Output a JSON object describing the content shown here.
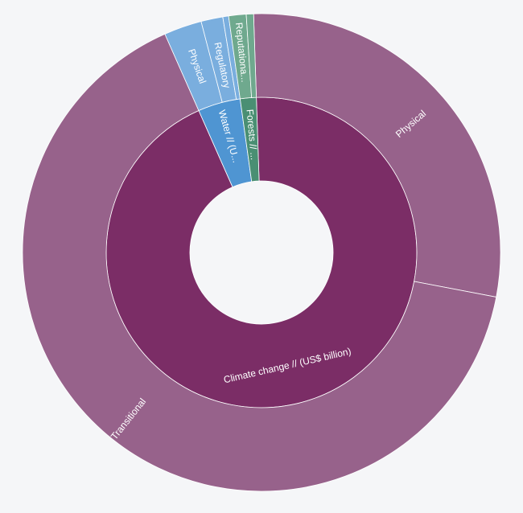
{
  "chart_data": {
    "type": "sunburst",
    "title": "",
    "inner_ring": [
      {
        "label": "Climate change // (US$ billion)",
        "value": 0.955,
        "color": "#7b2d66"
      },
      {
        "label": "Water // (U...",
        "value": 0.045,
        "color": "#4f95d2"
      },
      {
        "label": "Forests // ...",
        "value": 0.017,
        "color": "#4a8f73"
      }
    ],
    "outer_ring": [
      {
        "label": "Physical",
        "parent": "Climate change // (US$ billion)",
        "value": 0.29,
        "color": "#97628b"
      },
      {
        "label": "Transitional",
        "parent": "Climate change // (US$ billion)",
        "value": 0.665,
        "color": "#97628b"
      },
      {
        "label": "Physical",
        "parent": "Water // (U...",
        "value": 0.026,
        "color": "#7aaede"
      },
      {
        "label": "Regulatory",
        "parent": "Water // (U...",
        "value": 0.015,
        "color": "#7aaede"
      },
      {
        "label": "",
        "parent": "Water // (U...",
        "value": 0.004,
        "color": "#7aaede"
      },
      {
        "label": "Reputationa...",
        "parent": "Forests // ...",
        "value": 0.012,
        "color": "#6fa98e"
      },
      {
        "label": "",
        "parent": "Forests // ...",
        "value": 0.005,
        "color": "#6fa98e"
      }
    ]
  }
}
